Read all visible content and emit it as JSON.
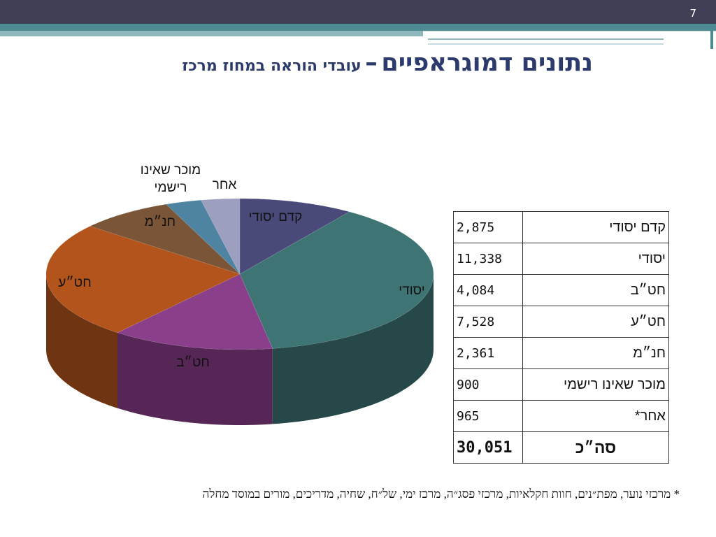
{
  "slide_number": "7",
  "title": {
    "main": "נתונים דמוגראפיים",
    "dash": "–",
    "sub": "עובדי הוראה במחוז מרכז"
  },
  "chart_data": {
    "type": "pie",
    "title": "",
    "categories": [
      "קדם יסודי",
      "יסודי",
      "חט״ב",
      "חט״ע",
      "חנ״מ",
      "מוכר שאינו רישמי",
      "אחר"
    ],
    "values": [
      2875,
      11338,
      4084,
      7528,
      2361,
      900,
      965
    ],
    "colors": [
      "#4a4a7a",
      "#3f7474",
      "#8a3f8a",
      "#b3541c",
      "#7a5538",
      "#4e84a2",
      "#9d9fbf"
    ],
    "three_d": true,
    "start": "12 o'clock, clockwise",
    "labels_on_slices": [
      "קדם יסודי",
      "יסודי",
      "חט״ב",
      "חט״ע",
      "חנ״מ",
      "מוכר שאינו\nרישמי",
      "אחר"
    ]
  },
  "table": {
    "rows": [
      {
        "label": "קדם יסודי",
        "value": "2,875"
      },
      {
        "label": "יסודי",
        "value": "11,338"
      },
      {
        "label": "חט״ב",
        "value": "4,084"
      },
      {
        "label": "חט״ע",
        "value": "7,528"
      },
      {
        "label": "חנ״מ",
        "value": "2,361"
      },
      {
        "label": "מוכר שאינו רישמי",
        "value": "900"
      },
      {
        "label": "אחר*",
        "value": "965"
      }
    ],
    "total": {
      "label": "סה״כ",
      "value": "30,051"
    }
  },
  "footnote": "* מרכזי נוער, מפת״נים, חוות חקלאיות, מרכזי פסג״ה, מרכז ימי, של״ח, שחיה, מדריכים, מורים במוסד מחלה"
}
